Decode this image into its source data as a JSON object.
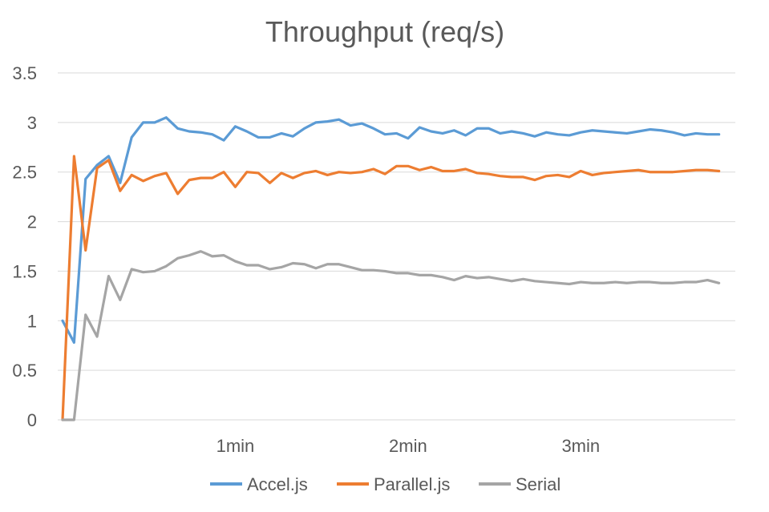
{
  "chart_data": {
    "type": "line",
    "title": "Throughput (req/s)",
    "xlabel": "",
    "ylabel": "",
    "ylim": [
      0,
      3.5
    ],
    "y_ticks": [
      "0",
      "0.5",
      "1",
      "1.5",
      "2",
      "2.5",
      "3",
      "3.5"
    ],
    "y_tick_values": [
      0,
      0.5,
      1,
      1.5,
      2,
      2.5,
      3,
      3.5
    ],
    "x_tick_labels": [
      "1min",
      "2min",
      "3min"
    ],
    "x_tick_positions": [
      15,
      30,
      45
    ],
    "x_range": [
      0,
      58
    ],
    "grid": true,
    "legend_position": "bottom",
    "series": [
      {
        "name": "Accel.js",
        "color": "#5b9bd5",
        "values": [
          1.0,
          0.78,
          2.43,
          2.57,
          2.66,
          2.39,
          2.85,
          3.0,
          3.0,
          3.05,
          2.94,
          2.91,
          2.9,
          2.88,
          2.82,
          2.96,
          2.91,
          2.85,
          2.85,
          2.89,
          2.86,
          2.94,
          3.0,
          3.01,
          3.03,
          2.97,
          2.99,
          2.94,
          2.88,
          2.89,
          2.84,
          2.95,
          2.91,
          2.89,
          2.92,
          2.87,
          2.94,
          2.94,
          2.89,
          2.91,
          2.89,
          2.86,
          2.9,
          2.88,
          2.87,
          2.9,
          2.92,
          2.91,
          2.9,
          2.89,
          2.91,
          2.93,
          2.92,
          2.9,
          2.87,
          2.89,
          2.88,
          2.88
        ]
      },
      {
        "name": "Parallel.js",
        "color": "#ed7d31",
        "values": [
          0.0,
          2.66,
          1.71,
          2.54,
          2.62,
          2.31,
          2.47,
          2.41,
          2.46,
          2.49,
          2.28,
          2.42,
          2.44,
          2.44,
          2.5,
          2.35,
          2.5,
          2.49,
          2.39,
          2.49,
          2.44,
          2.49,
          2.51,
          2.47,
          2.5,
          2.49,
          2.5,
          2.53,
          2.48,
          2.56,
          2.56,
          2.52,
          2.55,
          2.51,
          2.51,
          2.53,
          2.49,
          2.48,
          2.46,
          2.45,
          2.45,
          2.42,
          2.46,
          2.47,
          2.45,
          2.51,
          2.47,
          2.49,
          2.5,
          2.51,
          2.52,
          2.5,
          2.5,
          2.5,
          2.51,
          2.52,
          2.52,
          2.51
        ]
      },
      {
        "name": "Serial",
        "color": "#a5a5a5",
        "values": [
          0.0,
          0.0,
          1.06,
          0.84,
          1.45,
          1.21,
          1.52,
          1.49,
          1.5,
          1.55,
          1.63,
          1.66,
          1.7,
          1.65,
          1.66,
          1.6,
          1.56,
          1.56,
          1.52,
          1.54,
          1.58,
          1.57,
          1.53,
          1.57,
          1.57,
          1.54,
          1.51,
          1.51,
          1.5,
          1.48,
          1.48,
          1.46,
          1.46,
          1.44,
          1.41,
          1.45,
          1.43,
          1.44,
          1.42,
          1.4,
          1.42,
          1.4,
          1.39,
          1.38,
          1.37,
          1.39,
          1.38,
          1.38,
          1.39,
          1.38,
          1.39,
          1.39,
          1.38,
          1.38,
          1.39,
          1.39,
          1.41,
          1.38
        ]
      }
    ]
  }
}
